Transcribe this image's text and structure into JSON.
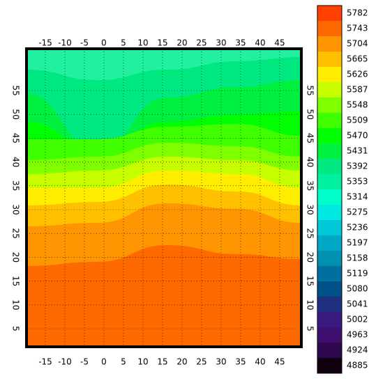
{
  "map": {
    "xticks": [
      -15,
      -10,
      -5,
      0,
      5,
      10,
      15,
      20,
      25,
      30,
      35,
      40,
      45
    ],
    "yticks": [
      5,
      10,
      15,
      20,
      25,
      30,
      35,
      40,
      45,
      50,
      55
    ],
    "colorbar": {
      "levels": [
        5782,
        5743,
        5704,
        5665,
        5626,
        5587,
        5548,
        5509,
        5470,
        5431,
        5392,
        5353,
        5314,
        5275,
        5236,
        5197,
        5158,
        5119,
        5080,
        5041,
        5002,
        4963,
        4924,
        4885
      ],
      "colors": [
        "#ff4000",
        "#ff6a00",
        "#ff9500",
        "#ffc000",
        "#ffee00",
        "#c8ff00",
        "#80ff00",
        "#40ff00",
        "#00ff00",
        "#00f040",
        "#00e880",
        "#00f0a0",
        "#00ffc8",
        "#00e8e0",
        "#00c8d8",
        "#00a8c8",
        "#0090b0",
        "#0070a0",
        "#005088",
        "#203080",
        "#3a1a80",
        "#401070",
        "#300850",
        "#100010"
      ]
    }
  }
}
